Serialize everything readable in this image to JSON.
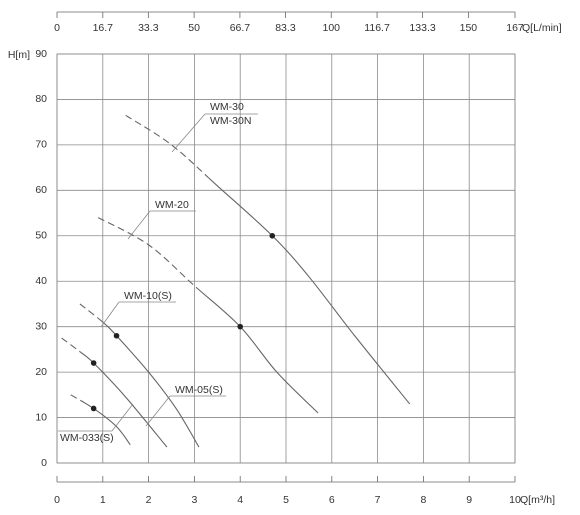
{
  "chart_data": {
    "type": "line",
    "xlabel": "Q[m³/h]",
    "x2label": "Q[L/min]",
    "ylabel": "H[m]",
    "xlim": [
      0,
      10
    ],
    "xticks": [
      0,
      1,
      2,
      3,
      4,
      5,
      6,
      7,
      8,
      9,
      10
    ],
    "x2lim": [
      0,
      167
    ],
    "x2ticks": [
      0,
      16.7,
      33.3,
      50,
      66.7,
      83.3,
      100,
      116.7,
      133.3,
      150,
      167
    ],
    "ylim": [
      0,
      90
    ],
    "yticks": [
      0,
      10,
      20,
      30,
      40,
      50,
      60,
      70,
      80,
      90
    ],
    "grid": true,
    "series": [
      {
        "labels": [
          "WM-30",
          "WM-30N"
        ],
        "color": "#666666",
        "x": [
          1.5,
          2.5,
          3.5,
          4.7,
          5.5,
          6.5,
          7.7
        ],
        "values": [
          76.5,
          70,
          61,
          50,
          41,
          28,
          13
        ],
        "solid_from": 3.3,
        "point": [
          4.7,
          50
        ]
      },
      {
        "labels": [
          "WM-20"
        ],
        "color": "#666666",
        "x": [
          0.9,
          2,
          3,
          4,
          4.8,
          5.7
        ],
        "values": [
          54,
          48,
          39,
          30,
          20,
          11
        ],
        "solid_from": 3.1,
        "point": [
          4,
          30
        ]
      },
      {
        "labels": [
          "WM-10(S)"
        ],
        "color": "#666666",
        "x": [
          0.5,
          1,
          1.3,
          2,
          2.6,
          3.1
        ],
        "values": [
          35,
          31,
          28,
          20,
          12,
          3.5
        ],
        "solid_from": 1.0,
        "point": [
          1.3,
          28
        ]
      },
      {
        "labels": [
          "WM-05(S)"
        ],
        "color": "#666666",
        "x": [
          0.1,
          0.5,
          0.8,
          1.5,
          2.4
        ],
        "values": [
          27.5,
          24.5,
          22,
          14.5,
          3.5
        ],
        "solid_from": 0.6,
        "point": [
          0.8,
          22
        ]
      },
      {
        "labels": [
          "WM-033(S)"
        ],
        "color": "#666666",
        "x": [
          0.3,
          0.8,
          1.3,
          1.6
        ],
        "values": [
          15,
          12,
          8,
          4
        ],
        "solid_from": 0.6,
        "point": [
          0.8,
          12
        ]
      }
    ]
  }
}
